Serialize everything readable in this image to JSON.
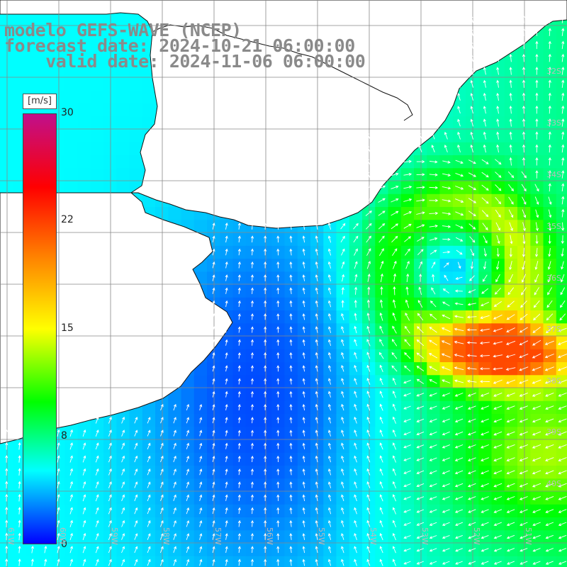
{
  "header": {
    "line1": "modelo GEFS-WAVE (NCEP)",
    "line2": "forecast date: 2024-10-21 06:00:00",
    "line3": "    valid date: 2024-11-06 06:00:00"
  },
  "colorbar": {
    "unit": "[m/s]",
    "ticks": [
      "30",
      "22",
      "15",
      "8",
      "0"
    ],
    "colors": [
      "#0000ff",
      "#00ffff",
      "#00ff00",
      "#ffff00",
      "#ff8000",
      "#ff0000",
      "#c0108c"
    ]
  },
  "lat_labels": [
    "32S",
    "33S",
    "34S",
    "35S",
    "36S",
    "37S",
    "38S",
    "39S",
    "40S"
  ],
  "lon_labels": [
    "61W",
    "60W",
    "59W",
    "58W",
    "57W",
    "56W",
    "55W",
    "54W",
    "53W",
    "52W",
    "51W"
  ],
  "wind_field": {
    "variable": "wind speed",
    "unit": "m/s",
    "range": [
      0,
      30
    ],
    "cyclone_center": "~35.8S 52.5W",
    "max_region": "37S-38S east of 52W, ~20 m/s"
  }
}
